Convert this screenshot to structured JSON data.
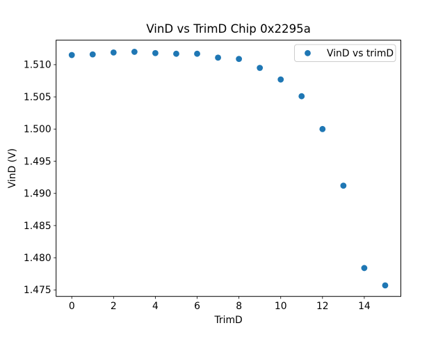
{
  "chart_data": {
    "type": "scatter",
    "title": "VinD vs TrimD Chip 0x2295a",
    "xlabel": "TrimD",
    "ylabel": "VinD (V)",
    "legend_entries": [
      "VinD vs trimD"
    ],
    "legend_position": "upper right",
    "marker_color": "#1f77b4",
    "grid": false,
    "x": [
      0,
      1,
      2,
      3,
      4,
      5,
      6,
      7,
      8,
      9,
      10,
      11,
      12,
      13,
      14,
      15
    ],
    "series": [
      {
        "name": "VinD vs trimD",
        "values": [
          1.5115,
          1.5116,
          1.5119,
          1.512,
          1.5118,
          1.5117,
          1.5117,
          1.5111,
          1.5109,
          1.5095,
          1.5077,
          1.5051,
          1.5,
          1.4912,
          1.4784,
          1.4757
        ]
      }
    ],
    "xlim": [
      -0.75,
      15.75
    ],
    "ylim": [
      1.47399,
      1.51381
    ],
    "xticks": [
      0,
      2,
      4,
      6,
      8,
      10,
      12,
      14
    ],
    "yticks": [
      1.475,
      1.48,
      1.485,
      1.49,
      1.495,
      1.5,
      1.505,
      1.51
    ],
    "ytick_decimals": 3
  }
}
